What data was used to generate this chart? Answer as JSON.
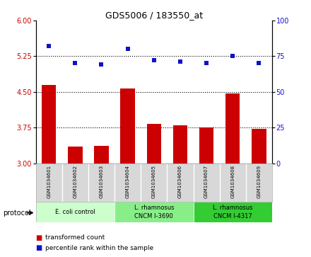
{
  "title": "GDS5006 / 183550_at",
  "samples": [
    "GSM1034601",
    "GSM1034602",
    "GSM1034603",
    "GSM1034604",
    "GSM1034605",
    "GSM1034606",
    "GSM1034607",
    "GSM1034608",
    "GSM1034609"
  ],
  "transformed_counts": [
    4.65,
    3.35,
    3.37,
    4.57,
    3.82,
    3.8,
    3.75,
    4.47,
    3.72
  ],
  "percentile_ranks": [
    82,
    70,
    69,
    80,
    72,
    71,
    70,
    75,
    70
  ],
  "bar_color": "#CC0000",
  "dot_color": "#1111CC",
  "ylim_left": [
    3.0,
    6.0
  ],
  "ylim_right": [
    0,
    100
  ],
  "yticks_left": [
    3.0,
    3.75,
    4.5,
    5.25,
    6.0
  ],
  "yticks_right": [
    0,
    25,
    50,
    75,
    100
  ],
  "hlines": [
    3.75,
    4.5,
    5.25
  ],
  "groups": [
    {
      "label": "E. coli control",
      "indices": [
        0,
        1,
        2
      ],
      "color": "#ccffcc"
    },
    {
      "label": "L. rhamnosus\nCNCM I-3690",
      "indices": [
        3,
        4,
        5
      ],
      "color": "#88ee88"
    },
    {
      "label": "L. rhamnosus\nCNCM I-4317",
      "indices": [
        6,
        7,
        8
      ],
      "color": "#33cc33"
    }
  ],
  "legend_bar_label": "transformed count",
  "legend_dot_label": "percentile rank within the sample",
  "protocol_label": "protocol",
  "tick_label_color_left": "#CC0000",
  "tick_label_color_right": "#1111CC",
  "background_color": "#ffffff",
  "plot_bg_color": "#ffffff",
  "sample_box_color": "#d8d8d8",
  "sample_box_edge": "#aaaaaa"
}
